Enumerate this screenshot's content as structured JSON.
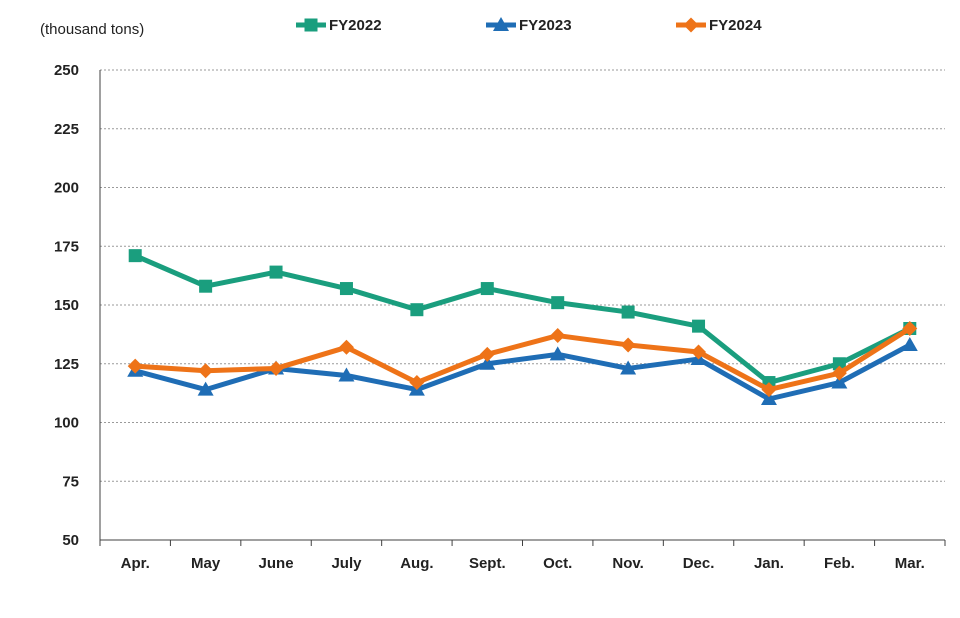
{
  "chart_data": {
    "type": "line",
    "unit_label": "(thousand tons)",
    "categories": [
      "Apr.",
      "May",
      "June",
      "July",
      "Aug.",
      "Sept.",
      "Oct.",
      "Nov.",
      "Dec.",
      "Jan.",
      "Feb.",
      "Mar."
    ],
    "ylim": [
      50,
      250
    ],
    "yticks": [
      50,
      75,
      100,
      125,
      150,
      175,
      200,
      225,
      250
    ],
    "grid": true,
    "legend_position": "top",
    "series": [
      {
        "name": "FY2022",
        "color": "#1a9e7e",
        "marker": "square",
        "values": [
          171,
          158,
          164,
          157,
          148,
          157,
          151,
          147,
          141,
          117,
          125,
          140
        ]
      },
      {
        "name": "FY2023",
        "color": "#1f6db5",
        "marker": "triangle",
        "values": [
          122,
          114,
          123,
          120,
          114,
          125,
          129,
          123,
          127,
          110,
          117,
          133
        ]
      },
      {
        "name": "FY2024",
        "color": "#ee7318",
        "marker": "diamond",
        "values": [
          124,
          122,
          123,
          132,
          117,
          129,
          137,
          133,
          130,
          114,
          121,
          140
        ]
      }
    ]
  }
}
